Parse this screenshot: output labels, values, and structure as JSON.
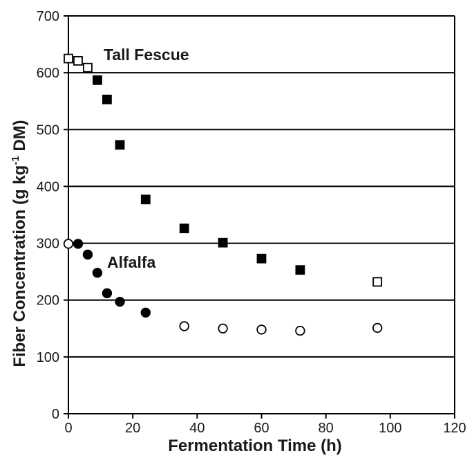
{
  "chart_data": {
    "type": "scatter",
    "xlabel": "Fermentation Time (h)",
    "ylabel": {
      "main": "Fiber Concentration (g kg",
      "sup": "-1",
      "tail": " DM)"
    },
    "xlim": [
      0,
      120
    ],
    "ylim": [
      0,
      700
    ],
    "x_ticks": [
      0,
      20,
      40,
      60,
      80,
      100,
      120
    ],
    "y_ticks": [
      0,
      100,
      200,
      300,
      400,
      500,
      600,
      700
    ],
    "grid": "horizontal",
    "annotations": [
      {
        "text": "Tall Fescue",
        "series": "Tall Fescue"
      },
      {
        "text": "Alfalfa",
        "series": "Alfalfa"
      }
    ],
    "series": [
      {
        "name": "Tall Fescue",
        "marker": "square",
        "points": [
          {
            "x": 0,
            "y": 625,
            "filled": false
          },
          {
            "x": 3,
            "y": 621,
            "filled": false
          },
          {
            "x": 6,
            "y": 609,
            "filled": false
          },
          {
            "x": 9,
            "y": 587,
            "filled": true
          },
          {
            "x": 12,
            "y": 553,
            "filled": true
          },
          {
            "x": 16,
            "y": 473,
            "filled": true
          },
          {
            "x": 24,
            "y": 377,
            "filled": true
          },
          {
            "x": 36,
            "y": 326,
            "filled": true
          },
          {
            "x": 48,
            "y": 301,
            "filled": true
          },
          {
            "x": 60,
            "y": 273,
            "filled": true
          },
          {
            "x": 72,
            "y": 253,
            "filled": true
          },
          {
            "x": 96,
            "y": 232,
            "filled": false
          }
        ]
      },
      {
        "name": "Alfalfa",
        "marker": "circle",
        "points": [
          {
            "x": 0,
            "y": 299,
            "filled": false
          },
          {
            "x": 3,
            "y": 299,
            "filled": true
          },
          {
            "x": 6,
            "y": 280,
            "filled": true
          },
          {
            "x": 9,
            "y": 248,
            "filled": true
          },
          {
            "x": 12,
            "y": 212,
            "filled": true
          },
          {
            "x": 16,
            "y": 197,
            "filled": true
          },
          {
            "x": 24,
            "y": 178,
            "filled": true
          },
          {
            "x": 36,
            "y": 154,
            "filled": false
          },
          {
            "x": 48,
            "y": 150,
            "filled": false
          },
          {
            "x": 60,
            "y": 148,
            "filled": false
          },
          {
            "x": 72,
            "y": 146,
            "filled": false
          },
          {
            "x": 96,
            "y": 151,
            "filled": false
          }
        ]
      }
    ]
  }
}
